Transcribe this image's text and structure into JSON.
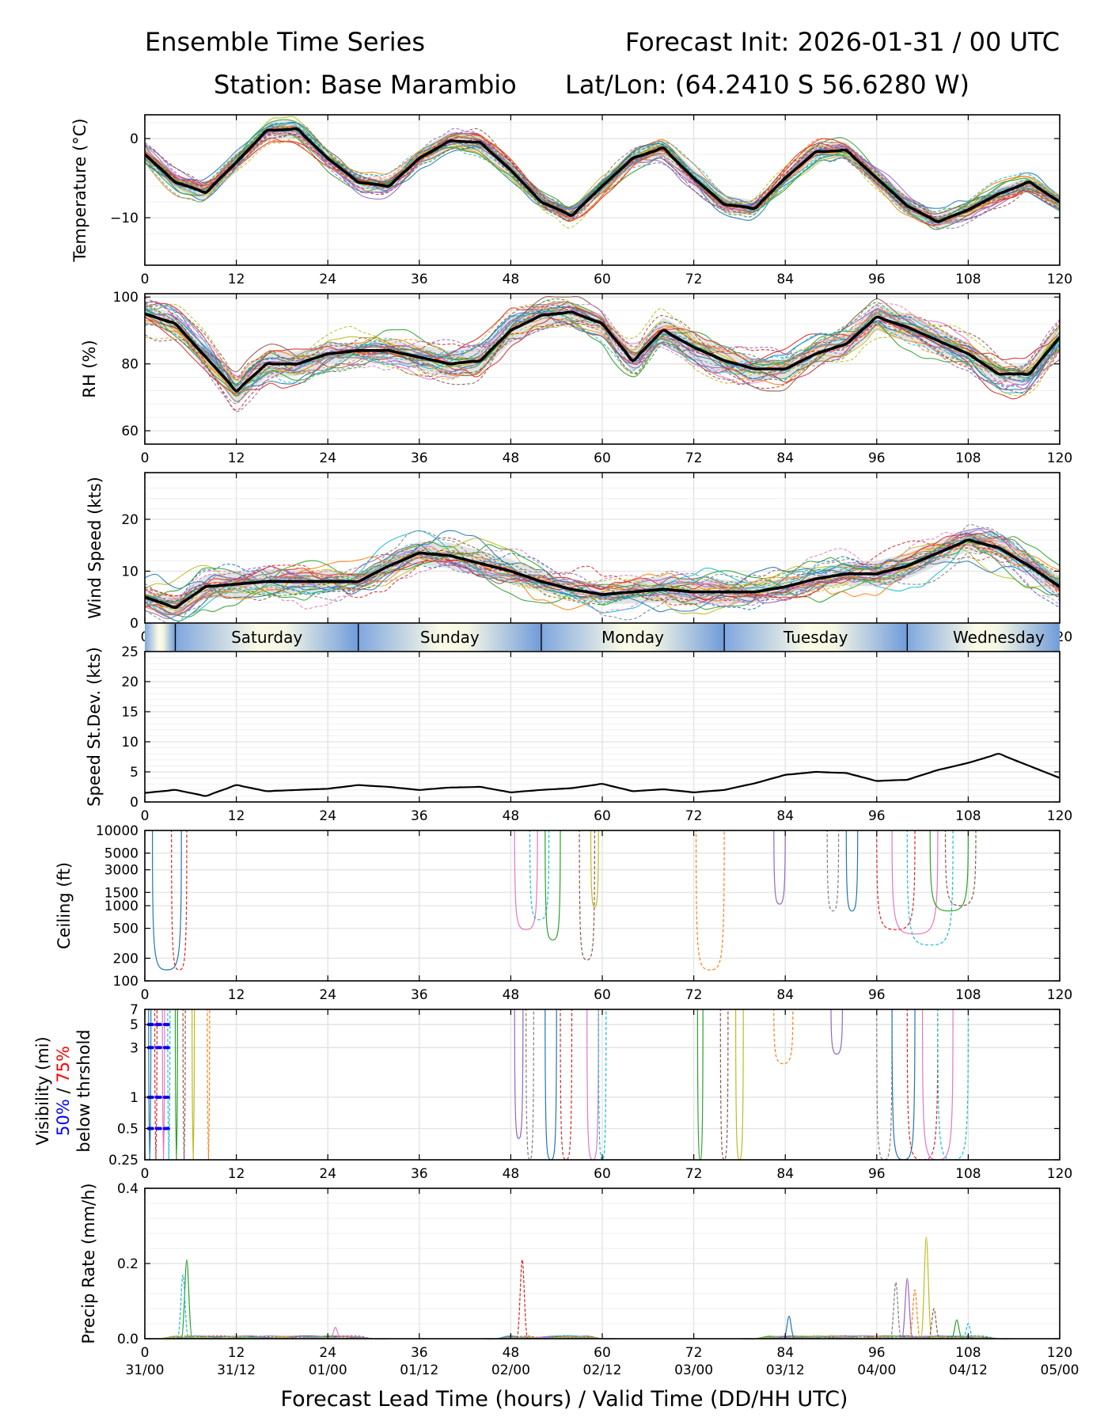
{
  "title": {
    "left_line1": "Ensemble Time Series",
    "right_line1": "Forecast Init: 2026-01-31 / 00 UTC",
    "line2_station": "Station: Base Marambio",
    "line2_latlon": "Lat/Lon: (64.2410 S 56.6280 W)"
  },
  "x_axis": {
    "label": "Forecast Lead Time (hours) / Valid Time (DD/HH UTC)",
    "range": [
      0,
      120
    ],
    "ticks": [
      "0",
      "12",
      "24",
      "36",
      "48",
      "60",
      "72",
      "84",
      "96",
      "108",
      "120"
    ],
    "valid_times": [
      "31/00",
      "31/12",
      "01/00",
      "01/12",
      "02/00",
      "02/12",
      "03/00",
      "03/12",
      "04/00",
      "04/12",
      "05/00"
    ]
  },
  "day_band": {
    "days": [
      "Saturday",
      "Sunday",
      "Monday",
      "Tuesday",
      "Wednesday"
    ],
    "day_start_hours": [
      4,
      28,
      52,
      76,
      100
    ]
  },
  "visibility_legend": {
    "line1": "Visibility (mi)",
    "p50": "50%",
    "slash": " / ",
    "p75": "75%",
    "line3": "below thrshold",
    "p50_color": "#0000ff",
    "p75_color": "#ff0000"
  },
  "colors": {
    "members": [
      "#1f77b4",
      "#ff7f0e",
      "#2ca02c",
      "#d62728",
      "#9467bd",
      "#8c564b",
      "#e377c2",
      "#7f7f7f",
      "#bcbd22",
      "#17becf"
    ],
    "mean": "#000000",
    "spread": "#d9d9d9",
    "grid": "#e2e2e2"
  },
  "chart_data": [
    {
      "name": "temperature",
      "type": "line",
      "ylabel": "Temperature (°C)",
      "ylim": [
        -16,
        3
      ],
      "yticks": [
        0,
        -10
      ],
      "ytick_labels": [
        "0",
        "−10"
      ],
      "x": [
        0,
        4,
        8,
        12,
        16,
        20,
        24,
        28,
        32,
        36,
        40,
        44,
        48,
        52,
        56,
        60,
        64,
        68,
        72,
        76,
        80,
        84,
        88,
        92,
        96,
        100,
        104,
        108,
        112,
        116,
        120
      ],
      "series": [
        {
          "name": "ensemble mean",
          "values": [
            -2,
            -5.5,
            -6.8,
            -3,
            1,
            1.2,
            -2.5,
            -5.5,
            -6,
            -2.5,
            -0.3,
            -0.5,
            -4,
            -8,
            -9.7,
            -6,
            -2.5,
            -1.2,
            -5,
            -8.3,
            -8.8,
            -5,
            -1.7,
            -1.5,
            -5,
            -8.5,
            -10.5,
            -9,
            -7,
            -5.5,
            -8
          ]
        }
      ]
    },
    {
      "name": "relative_humidity",
      "type": "line",
      "ylabel": "RH (%)",
      "ylim": [
        56,
        101
      ],
      "yticks": [
        100,
        80,
        60
      ],
      "ytick_labels": [
        "100",
        "80",
        "60"
      ],
      "x": [
        0,
        4,
        8,
        12,
        16,
        20,
        24,
        28,
        32,
        36,
        40,
        44,
        48,
        52,
        56,
        60,
        64,
        68,
        72,
        76,
        80,
        84,
        88,
        92,
        96,
        100,
        104,
        108,
        112,
        116,
        120
      ],
      "series": [
        {
          "name": "ensemble mean",
          "values": [
            95,
            92,
            82,
            72,
            80,
            80,
            83,
            84,
            84,
            82,
            80,
            81,
            90,
            94.5,
            95.5,
            92,
            81,
            90,
            85,
            81,
            78.5,
            78.5,
            83,
            86,
            94,
            91,
            87,
            83,
            77,
            77,
            88
          ]
        }
      ]
    },
    {
      "name": "wind_speed",
      "type": "line",
      "ylabel": "Wind Speed (kts)",
      "ylim": [
        0,
        29
      ],
      "yticks": [
        0,
        10,
        20
      ],
      "ytick_labels": [
        "0",
        "10",
        "20"
      ],
      "x": [
        0,
        4,
        8,
        12,
        16,
        20,
        24,
        28,
        32,
        36,
        40,
        44,
        48,
        52,
        56,
        60,
        64,
        68,
        72,
        76,
        80,
        84,
        88,
        92,
        96,
        100,
        104,
        108,
        112,
        116,
        120
      ],
      "series": [
        {
          "name": "ensemble mean",
          "values": [
            5,
            3,
            7,
            7.5,
            8,
            8,
            8,
            8,
            11,
            13.5,
            13,
            11.5,
            10,
            8,
            6.5,
            5.5,
            6,
            6.5,
            6,
            6,
            6,
            7,
            8.5,
            9.5,
            9.5,
            11,
            13.5,
            16,
            14.5,
            11,
            7
          ]
        }
      ]
    },
    {
      "name": "speed_stdev",
      "type": "line",
      "ylabel": "Speed St.Dev. (kts)",
      "ylim": [
        0,
        25
      ],
      "yticks": [
        0,
        5,
        10,
        15,
        20,
        25
      ],
      "ytick_labels": [
        "0",
        "5",
        "10",
        "15",
        "20",
        "25"
      ],
      "x": [
        0,
        4,
        8,
        12,
        16,
        20,
        24,
        28,
        32,
        36,
        40,
        44,
        48,
        52,
        56,
        60,
        64,
        68,
        72,
        76,
        80,
        84,
        88,
        92,
        96,
        100,
        104,
        108,
        112,
        116,
        120
      ],
      "series": [
        {
          "name": "st.dev.",
          "values": [
            1.5,
            2,
            1,
            2.8,
            1.8,
            2,
            2.2,
            2.8,
            2.5,
            2,
            2.4,
            2.5,
            1.6,
            2,
            2.3,
            3,
            1.8,
            2.1,
            1.6,
            2,
            3.1,
            4.5,
            5,
            4.8,
            3.5,
            3.7,
            5.3,
            6.5,
            8,
            6,
            4
          ]
        }
      ]
    },
    {
      "name": "ceiling",
      "type": "line",
      "ylabel": "Ceiling (ft)",
      "yscale": "log",
      "ylim": [
        100,
        10000
      ],
      "yticks": [
        100,
        200,
        500,
        1000,
        1500,
        3000,
        5000,
        10000
      ],
      "ytick_labels": [
        "100",
        "200",
        "500",
        "1000",
        "1500",
        "3000",
        "5000",
        "10000"
      ],
      "dips": [
        {
          "start": 1,
          "end": 4.8,
          "min": 140
        },
        {
          "start": 3.5,
          "end": 5.5,
          "min": 140
        },
        {
          "start": 48.5,
          "end": 51.5,
          "min": 480
        },
        {
          "start": 50.5,
          "end": 53,
          "min": 650
        },
        {
          "start": 52.5,
          "end": 54.5,
          "min": 350
        },
        {
          "start": 57,
          "end": 59,
          "min": 190
        },
        {
          "start": 58.5,
          "end": 59.5,
          "min": 950
        },
        {
          "start": 72.3,
          "end": 76,
          "min": 140
        },
        {
          "start": 82.5,
          "end": 84,
          "min": 1050
        },
        {
          "start": 89.5,
          "end": 91,
          "min": 850
        },
        {
          "start": 92,
          "end": 93.5,
          "min": 850
        },
        {
          "start": 96,
          "end": 101,
          "min": 480
        },
        {
          "start": 98,
          "end": 104,
          "min": 420
        },
        {
          "start": 100,
          "end": 106,
          "min": 300
        },
        {
          "start": 103,
          "end": 108,
          "min": 850
        },
        {
          "start": 105,
          "end": 109,
          "min": 1000
        }
      ]
    },
    {
      "name": "visibility",
      "type": "line",
      "ylabel": "Visibility (mi)",
      "yscale": "log",
      "ylim": [
        0.25,
        7
      ],
      "yticks": [
        0.25,
        0.5,
        1,
        3,
        5,
        7
      ],
      "ytick_labels": [
        "0.25",
        "0.5",
        "1",
        "3",
        "5",
        "7"
      ],
      "threshold_bars": {
        "values": [
          5,
          3,
          1,
          0.5
        ],
        "x_start": 0.5,
        "x_end": 1.8
      },
      "dips": [
        {
          "start": 0.5,
          "end": 0.8,
          "min": 0.25
        },
        {
          "start": 1.3,
          "end": 1.6,
          "min": 0.25
        },
        {
          "start": 2.3,
          "end": 2.6,
          "min": 0.25
        },
        {
          "start": 3,
          "end": 3.3,
          "min": 0.25
        },
        {
          "start": 4,
          "end": 4.3,
          "min": 0.25
        },
        {
          "start": 5,
          "end": 5.3,
          "min": 0.25
        },
        {
          "start": 6.2,
          "end": 6.5,
          "min": 0.25
        },
        {
          "start": 8.2,
          "end": 8.5,
          "min": 0.25
        },
        {
          "start": 48.5,
          "end": 49.6,
          "min": 0.4
        },
        {
          "start": 50,
          "end": 51,
          "min": 0.25
        },
        {
          "start": 52.5,
          "end": 54,
          "min": 0.25
        },
        {
          "start": 54.5,
          "end": 56,
          "min": 0.25
        },
        {
          "start": 58,
          "end": 59.5,
          "min": 0.25
        },
        {
          "start": 59.5,
          "end": 60.5,
          "min": 0.25
        },
        {
          "start": 72.5,
          "end": 73.2,
          "min": 0.25
        },
        {
          "start": 75.5,
          "end": 76.5,
          "min": 0.25
        },
        {
          "start": 77.5,
          "end": 78.5,
          "min": 0.25
        },
        {
          "start": 82.5,
          "end": 85,
          "min": 2.1
        },
        {
          "start": 90,
          "end": 91.5,
          "min": 2.6
        },
        {
          "start": 96,
          "end": 98,
          "min": 0.25
        },
        {
          "start": 98,
          "end": 101,
          "min": 0.25
        },
        {
          "start": 100,
          "end": 104,
          "min": 0.25
        },
        {
          "start": 102,
          "end": 106,
          "min": 0.25
        },
        {
          "start": 104,
          "end": 108,
          "min": 0.25
        }
      ]
    },
    {
      "name": "precip_rate",
      "type": "line",
      "ylabel": "Precip Rate (mm/h)",
      "ylim": [
        0,
        0.4
      ],
      "yticks": [
        0,
        0.2,
        0.4
      ],
      "ytick_labels": [
        "0.0",
        "0.2",
        "0.4"
      ],
      "spikes": [
        {
          "x": 5.5,
          "peak": 0.21
        },
        {
          "x": 5,
          "peak": 0.17
        },
        {
          "x": 25,
          "peak": 0.03
        },
        {
          "x": 49.5,
          "peak": 0.21
        },
        {
          "x": 84.5,
          "peak": 0.06
        },
        {
          "x": 98.5,
          "peak": 0.15
        },
        {
          "x": 100,
          "peak": 0.16
        },
        {
          "x": 101,
          "peak": 0.13
        },
        {
          "x": 102.5,
          "peak": 0.27
        },
        {
          "x": 103.5,
          "peak": 0.08
        },
        {
          "x": 106.5,
          "peak": 0.05
        },
        {
          "x": 108,
          "peak": 0.04
        }
      ]
    }
  ]
}
